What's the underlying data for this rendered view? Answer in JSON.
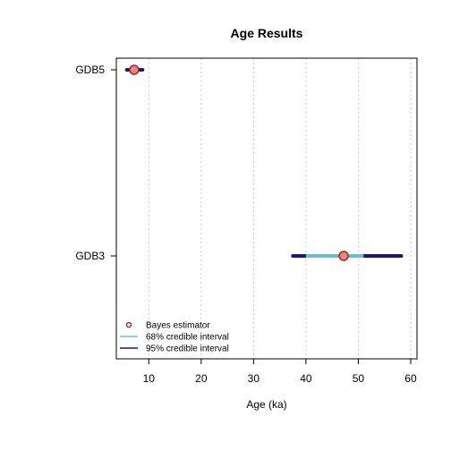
{
  "chart_data": {
    "type": "interval",
    "title": "Age Results",
    "xlabel": "Age (ka)",
    "ylabel": "",
    "xlim": [
      3.8,
      61.2
    ],
    "xticks": [
      10,
      20,
      30,
      40,
      50,
      60
    ],
    "xtick_labels": [
      "10",
      "20",
      "30",
      "40",
      "50",
      "60"
    ],
    "grid": "vertical-dotted",
    "legend_position": "bottom-left",
    "samples": [
      {
        "label": "GDB5",
        "bayes": 7.2,
        "ci68": [
          6.4,
          8.1
        ],
        "ci95": [
          5.8,
          8.8
        ]
      },
      {
        "label": "GDB3",
        "bayes": 47.2,
        "ci68": [
          40.0,
          51.0
        ],
        "ci95": [
          37.5,
          58.2
        ]
      }
    ],
    "legend": [
      {
        "name": "Bayes estimator",
        "kind": "point"
      },
      {
        "name": "68% credible interval",
        "kind": "line-68"
      },
      {
        "name": "95% credible interval",
        "kind": "line-95"
      }
    ],
    "colors": {
      "ci95": "#191970",
      "ci68": "#6bbfca",
      "point_fill": "#e08a82",
      "point_stroke": "#b22222",
      "grid": "#c8c8c8",
      "frame": "#000000"
    }
  }
}
